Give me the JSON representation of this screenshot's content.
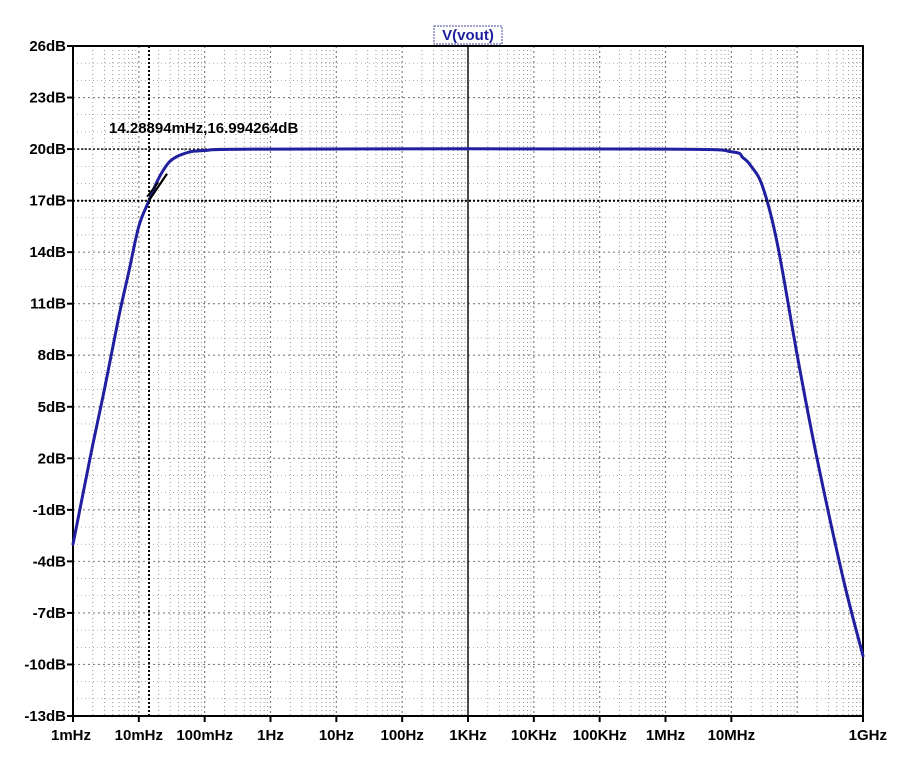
{
  "chart_data": {
    "type": "line",
    "title": "V(vout)",
    "xlabel": "",
    "ylabel": "",
    "x_scale": "log",
    "xlim": [
      "1mHz",
      "1GHz"
    ],
    "ylim": [
      -13,
      26
    ],
    "x_ticks": [
      "1mHz",
      "10mHz",
      "100mHz",
      "1Hz",
      "10Hz",
      "100Hz",
      "1KHz",
      "10KHz",
      "100KHz",
      "1MHz",
      "10MHz",
      "1GHz"
    ],
    "y_ticks": [
      "26dB",
      "23dB",
      "20dB",
      "17dB",
      "14dB",
      "11dB",
      "8dB",
      "5dB",
      "2dB",
      "-1dB",
      "-4dB",
      "-7dB",
      "-10dB",
      "-13dB"
    ],
    "grid": true,
    "series": [
      {
        "name": "V(vout)",
        "color": "#1f1fa0",
        "points": [
          [
            "1mHz",
            -3.0
          ],
          [
            "2mHz",
            2.8
          ],
          [
            "3mHz",
            6.0
          ],
          [
            "5mHz",
            10.3
          ],
          [
            "7mHz",
            12.8
          ],
          [
            "10mHz",
            15.5
          ],
          [
            "14.28894mHz",
            16.994264
          ],
          [
            "20mHz",
            18.3
          ],
          [
            "30mHz",
            19.3
          ],
          [
            "50mHz",
            19.75
          ],
          [
            "100mHz",
            19.92
          ],
          [
            "1Hz",
            20.0
          ],
          [
            "1MHz",
            20.0
          ],
          [
            "10MHz",
            19.85
          ],
          [
            "15MHz",
            19.5
          ],
          [
            "20MHz",
            19.0
          ],
          [
            "30MHz",
            17.8
          ],
          [
            "50MHz",
            14.5
          ],
          [
            "100MHz",
            8.0
          ],
          [
            "200MHz",
            2.0
          ],
          [
            "500MHz",
            -5.0
          ],
          [
            "1GHz",
            -9.5
          ]
        ]
      }
    ],
    "cursor": {
      "label": "14.28894mHz,16.994264dB",
      "x": "14.28894mHz",
      "y": 16.994264
    },
    "colors": {
      "trace": "#1f1fa0",
      "grid": "#808080",
      "axes": "#000000",
      "title": "#1f1fa0"
    }
  }
}
